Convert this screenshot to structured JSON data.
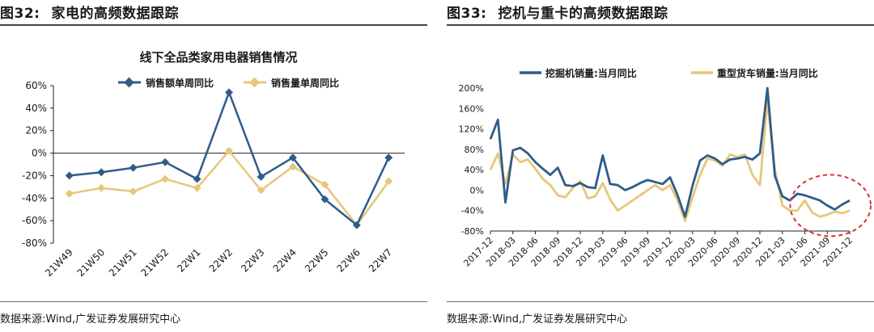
{
  "left": {
    "fig_number": "图32:",
    "fig_title": "家电的高频数据跟踪",
    "source": "数据来源:Wind,广发证券发展研究中心",
    "colors": {
      "series1": "#2e5c8a",
      "series2": "#e6c77a"
    }
  },
  "right": {
    "fig_number": "图33:",
    "fig_title": "挖机与重卡的高频数据跟踪",
    "source": "数据来源:Wind,广发证券发展研究中心",
    "colors": {
      "series1": "#2e5c8a",
      "series2": "#e6c77a",
      "highlight": "#e03030"
    }
  },
  "chart_data": [
    {
      "type": "line",
      "title": "线下全品类家用电器销售情况",
      "categories": [
        "21W49",
        "21W50",
        "21W51",
        "21W52",
        "22W1",
        "22W2",
        "22W3",
        "22W4",
        "22W5",
        "22W6",
        "22W7"
      ],
      "series": [
        {
          "name": "销售额单周同比",
          "values": [
            -20,
            -17,
            -13,
            -8,
            -23,
            54,
            -21,
            -4,
            -41,
            -64,
            -4
          ]
        },
        {
          "name": "销售量单周同比",
          "values": [
            -36,
            -31,
            -34,
            -23,
            -31,
            2,
            -33,
            -12,
            -28,
            -64,
            -25
          ]
        }
      ],
      "ylim": [
        -80,
        60
      ],
      "yticks": [
        "-80%",
        "-60%",
        "-40%",
        "-20%",
        "0%",
        "20%",
        "40%",
        "60%"
      ],
      "xlabel": "",
      "ylabel": "",
      "grid": false,
      "legend": "top-center"
    },
    {
      "type": "line",
      "title": "",
      "x_ticks": [
        "2017-12",
        "2018-03",
        "2018-06",
        "2018-09",
        "2018-12",
        "2019-03",
        "2019-06",
        "2019-09",
        "2019-12",
        "2020-03",
        "2020-06",
        "2020-09",
        "2020-12",
        "2021-03",
        "2021-06",
        "2021-09",
        "2021-12"
      ],
      "x_start": "2017-12",
      "x_end": "2021-12",
      "series": [
        {
          "name": "挖掘机销量:当月同比",
          "x": [
            "2017-12",
            "2018-01",
            "2018-02",
            "2018-03",
            "2018-04",
            "2018-05",
            "2018-06",
            "2018-07",
            "2018-08",
            "2018-09",
            "2018-10",
            "2018-11",
            "2018-12",
            "2019-01",
            "2019-02",
            "2019-03",
            "2019-04",
            "2019-05",
            "2019-06",
            "2019-07",
            "2019-08",
            "2019-09",
            "2019-10",
            "2019-11",
            "2019-12",
            "2020-01",
            "2020-02",
            "2020-03",
            "2020-04",
            "2020-05",
            "2020-06",
            "2020-07",
            "2020-08",
            "2020-09",
            "2020-10",
            "2020-11",
            "2020-12",
            "2021-01",
            "2021-02",
            "2021-03",
            "2021-04",
            "2021-05",
            "2021-06",
            "2021-07",
            "2021-08",
            "2021-09",
            "2021-10",
            "2021-11",
            "2021-12"
          ],
          "values": [
            100,
            138,
            -24,
            78,
            83,
            72,
            55,
            42,
            30,
            44,
            10,
            8,
            14,
            6,
            4,
            68,
            12,
            10,
            0,
            6,
            14,
            20,
            16,
            12,
            25,
            -10,
            -52,
            9,
            58,
            68,
            62,
            51,
            60,
            62,
            65,
            60,
            72,
            200,
            28,
            -12,
            -20,
            -7,
            -10,
            -15,
            -20,
            -30,
            -38,
            -28,
            -20
          ]
        },
        {
          "name": "重型货车销量:当月同比",
          "x": [
            "2017-12",
            "2018-01",
            "2018-02",
            "2018-03",
            "2018-04",
            "2018-05",
            "2018-06",
            "2018-07",
            "2018-08",
            "2018-09",
            "2018-10",
            "2018-11",
            "2018-12",
            "2019-01",
            "2019-02",
            "2019-03",
            "2019-04",
            "2019-05",
            "2019-06",
            "2019-07",
            "2019-08",
            "2019-09",
            "2019-10",
            "2019-11",
            "2019-12",
            "2020-01",
            "2020-02",
            "2020-03",
            "2020-04",
            "2020-05",
            "2020-06",
            "2020-07",
            "2020-08",
            "2020-09",
            "2020-10",
            "2020-11",
            "2020-12",
            "2021-01",
            "2021-02",
            "2021-03",
            "2021-04",
            "2021-05",
            "2021-06",
            "2021-07",
            "2021-08",
            "2021-09",
            "2021-10",
            "2021-11",
            "2021-12"
          ],
          "values": [
            40,
            72,
            12,
            70,
            55,
            60,
            42,
            22,
            10,
            -10,
            -14,
            4,
            18,
            -16,
            -12,
            14,
            -18,
            -40,
            -30,
            -20,
            -10,
            0,
            10,
            0,
            10,
            -20,
            -60,
            -14,
            30,
            62,
            58,
            48,
            70,
            65,
            70,
            30,
            10,
            175,
            40,
            -30,
            -40,
            -40,
            -20,
            -44,
            -52,
            -48,
            -42,
            -45,
            -40
          ]
        }
      ],
      "ylim": [
        -80,
        200
      ],
      "yticks": [
        "-80%",
        "-40%",
        "0%",
        "40%",
        "80%",
        "120%",
        "160%",
        "200%"
      ],
      "xlabel": "",
      "ylabel": "",
      "grid": false,
      "legend": "top",
      "annotation": "dashed red ellipse around 2021-06 to 2021-12"
    }
  ]
}
